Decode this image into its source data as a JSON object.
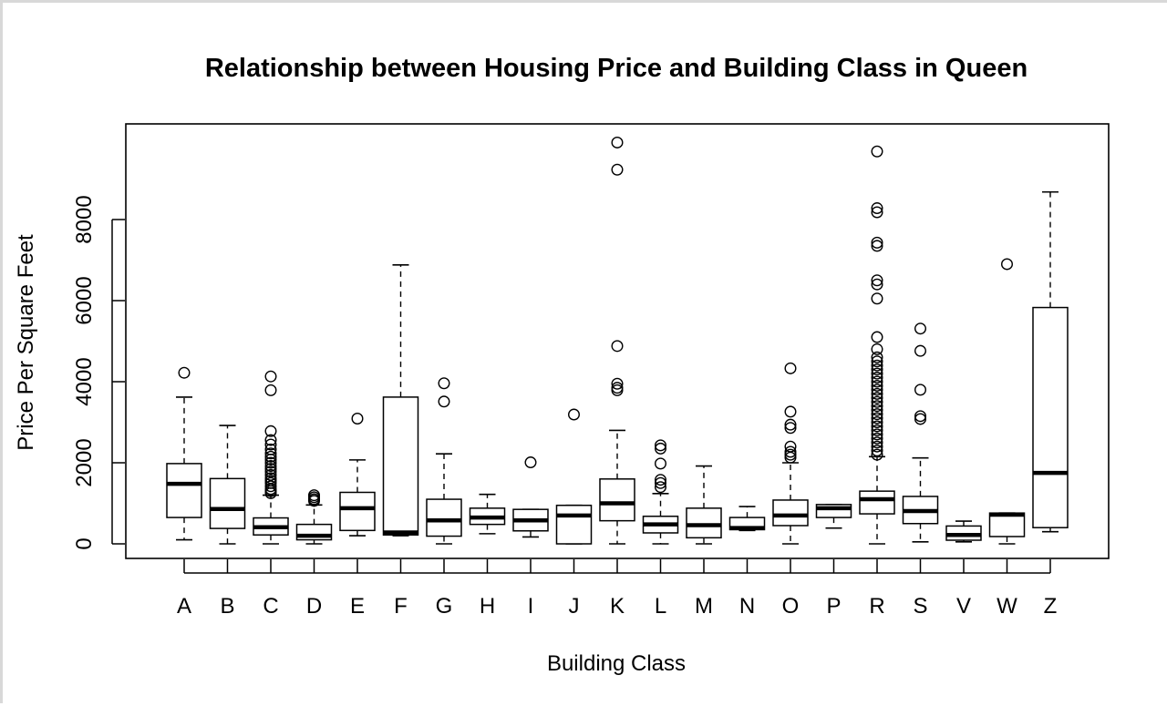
{
  "chart_data": {
    "type": "box",
    "title": "Relationship between Housing Price and Building Class in Queen",
    "xlabel": "Building Class",
    "ylabel": "Price Per Square Feet",
    "ylim": [
      -350,
      10300
    ],
    "y_ticks": [
      0,
      2000,
      4000,
      6000,
      8000
    ],
    "categories": [
      "A",
      "B",
      "C",
      "D",
      "E",
      "F",
      "G",
      "H",
      "I",
      "J",
      "K",
      "L",
      "M",
      "N",
      "O",
      "P",
      "R",
      "S",
      "V",
      "W",
      "Z"
    ],
    "boxes": [
      {
        "label": "A",
        "min": 100,
        "q1": 650,
        "median": 1480,
        "q3": 1980,
        "max": 3620,
        "outliers": [
          4220
        ]
      },
      {
        "label": "B",
        "min": 0,
        "q1": 380,
        "median": 860,
        "q3": 1610,
        "max": 2920,
        "outliers": []
      },
      {
        "label": "C",
        "min": 0,
        "q1": 220,
        "median": 410,
        "q3": 640,
        "max": 1200,
        "outliers": [
          1250,
          1300,
          1350,
          1420,
          1500,
          1560,
          1620,
          1700,
          1780,
          1850,
          1920,
          2000,
          2080,
          2150,
          2230,
          2330,
          2450,
          2560,
          2780,
          3790,
          4130
        ]
      },
      {
        "label": "D",
        "min": 0,
        "q1": 100,
        "median": 200,
        "q3": 480,
        "max": 960,
        "outliers": [
          1060,
          1100,
          1150,
          1200
        ]
      },
      {
        "label": "E",
        "min": 200,
        "q1": 330,
        "median": 880,
        "q3": 1270,
        "max": 2070,
        "outliers": [
          3090
        ]
      },
      {
        "label": "F",
        "min": 200,
        "q1": 220,
        "median": 280,
        "q3": 3620,
        "max": 6880,
        "outliers": []
      },
      {
        "label": "G",
        "min": 0,
        "q1": 190,
        "median": 580,
        "q3": 1100,
        "max": 2220,
        "outliers": [
          3510,
          3960
        ]
      },
      {
        "label": "H",
        "min": 250,
        "q1": 480,
        "median": 650,
        "q3": 880,
        "max": 1220,
        "outliers": []
      },
      {
        "label": "I",
        "min": 170,
        "q1": 320,
        "median": 580,
        "q3": 850,
        "max": 850,
        "outliers": [
          2010
        ]
      },
      {
        "label": "J",
        "min": 0,
        "q1": 0,
        "median": 700,
        "q3": 950,
        "max": 950,
        "outliers": [
          3190
        ]
      },
      {
        "label": "K",
        "min": 0,
        "q1": 570,
        "median": 1000,
        "q3": 1600,
        "max": 2800,
        "outliers": [
          3790,
          3850,
          3950,
          4880,
          9230,
          9900
        ]
      },
      {
        "label": "L",
        "min": 0,
        "q1": 270,
        "median": 480,
        "q3": 680,
        "max": 1240,
        "outliers": [
          1400,
          1500,
          1580,
          1980,
          2350,
          2430
        ]
      },
      {
        "label": "M",
        "min": 0,
        "q1": 150,
        "median": 460,
        "q3": 880,
        "max": 1920,
        "outliers": []
      },
      {
        "label": "N",
        "min": 330,
        "q1": 350,
        "median": 390,
        "q3": 650,
        "max": 920,
        "outliers": []
      },
      {
        "label": "O",
        "min": 0,
        "q1": 450,
        "median": 700,
        "q3": 1080,
        "max": 2000,
        "outliers": [
          2130,
          2200,
          2270,
          2400,
          2860,
          2940,
          3260,
          4330
        ]
      },
      {
        "label": "P",
        "min": 390,
        "q1": 650,
        "median": 880,
        "q3": 970,
        "max": 970,
        "outliers": []
      },
      {
        "label": "R",
        "min": 0,
        "q1": 740,
        "median": 1100,
        "q3": 1300,
        "max": 2150,
        "outliers": [
          2200,
          2300,
          2400,
          2500,
          2600,
          2700,
          2800,
          2900,
          3000,
          3100,
          3200,
          3300,
          3400,
          3500,
          3600,
          3700,
          3800,
          3900,
          4000,
          4100,
          4200,
          4300,
          4400,
          4500,
          4600,
          4800,
          5100,
          6050,
          6400,
          6500,
          7350,
          7430,
          8180,
          8280,
          9680
        ]
      },
      {
        "label": "S",
        "min": 50,
        "q1": 500,
        "median": 810,
        "q3": 1170,
        "max": 2120,
        "outliers": [
          3080,
          3150,
          3800,
          4760,
          5310
        ]
      },
      {
        "label": "V",
        "min": 50,
        "q1": 90,
        "median": 220,
        "q3": 440,
        "max": 560,
        "outliers": []
      },
      {
        "label": "W",
        "min": 0,
        "q1": 180,
        "median": 720,
        "q3": 760,
        "max": 760,
        "outliers": [
          6900
        ]
      },
      {
        "label": "Z",
        "min": 300,
        "q1": 400,
        "median": 1750,
        "q3": 5830,
        "max": 8680,
        "outliers": []
      }
    ]
  }
}
